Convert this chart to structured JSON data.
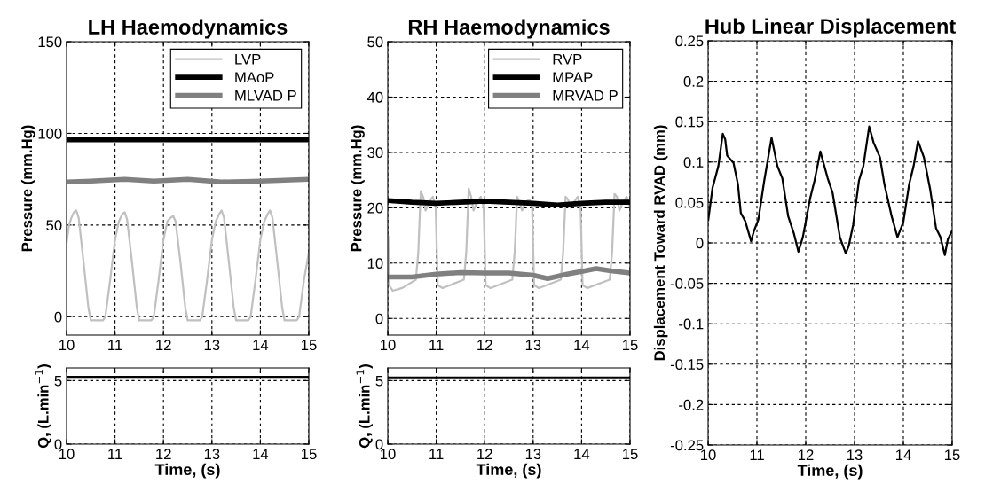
{
  "chart_data": [
    {
      "type": "line",
      "title": "LH Haemodynamics",
      "ylabel": "Pressure (mm.Hg)",
      "xlim": [
        10,
        15
      ],
      "xticks": [
        10,
        11,
        12,
        13,
        14,
        15
      ],
      "ylim": [
        -10,
        150
      ],
      "yticks": [
        0,
        50,
        100,
        150
      ],
      "grid": true,
      "legend": "top right",
      "series": [
        {
          "name": "LVP",
          "color": "#c0c0c0",
          "x": [
            10.0,
            10.05,
            10.1,
            10.15,
            10.2,
            10.25,
            10.35,
            10.45,
            10.5,
            10.75,
            10.8,
            10.9,
            11.0,
            11.08,
            11.15,
            11.2,
            11.25,
            11.35,
            11.45,
            11.5,
            11.75,
            11.8,
            11.9,
            12.0,
            12.08,
            12.15,
            12.2,
            12.25,
            12.35,
            12.45,
            12.5,
            12.75,
            12.8,
            12.9,
            13.0,
            13.08,
            13.15,
            13.2,
            13.25,
            13.35,
            13.45,
            13.5,
            13.75,
            13.8,
            13.9,
            14.0,
            14.08,
            14.15,
            14.2,
            14.25,
            14.35,
            14.45,
            14.5,
            14.75,
            14.8,
            14.9,
            15.0
          ],
          "values": [
            40,
            50,
            54,
            57,
            58,
            54,
            30,
            5,
            -2,
            -2,
            0,
            20,
            42,
            52,
            56,
            57,
            53,
            30,
            5,
            -2,
            -2,
            0,
            20,
            42,
            52,
            54,
            55,
            52,
            30,
            5,
            -2,
            -2,
            0,
            20,
            42,
            52,
            56,
            58,
            54,
            30,
            5,
            -2,
            -2,
            0,
            20,
            42,
            52,
            56,
            58,
            54,
            30,
            5,
            -2,
            -2,
            0,
            20,
            35
          ]
        },
        {
          "name": "MAoP",
          "color": "#000000",
          "x": [
            10,
            15
          ],
          "values": [
            96.5,
            96.5
          ]
        },
        {
          "name": "MLVAD P",
          "color": "#808080",
          "x": [
            10,
            10.5,
            11.2,
            11.8,
            12.5,
            13.2,
            14,
            15
          ],
          "values": [
            73.5,
            74,
            75,
            74,
            75,
            73.5,
            74,
            75
          ]
        }
      ]
    },
    {
      "type": "line",
      "ylabel": "Q, (L.min$^{−1}$)",
      "xlabel": "Time, (s)",
      "xlim": [
        10,
        15
      ],
      "xticks": [
        10,
        11,
        12,
        13,
        14,
        15
      ],
      "ylim": [
        0,
        6
      ],
      "yticks": [
        0,
        5
      ],
      "grid": true,
      "series": [
        {
          "color": "#000000",
          "x": [
            10,
            15
          ],
          "values": [
            5.3,
            5.3
          ]
        }
      ]
    },
    {
      "type": "line",
      "title": "RH Haemodynamics",
      "ylabel": "Pressure (mm.Hg)",
      "xlim": [
        10,
        15
      ],
      "xticks": [
        10,
        11,
        12,
        13,
        14,
        15
      ],
      "ylim": [
        -3,
        50
      ],
      "yticks": [
        0,
        10,
        20,
        30,
        40,
        50
      ],
      "grid": true,
      "legend": "top right",
      "series": [
        {
          "name": "RVP",
          "color": "#c0c0c0",
          "x": [
            10.01,
            10.03,
            10.1,
            10.3,
            10.58,
            10.63,
            10.68,
            10.73,
            10.78,
            10.85,
            10.93,
            10.99,
            11.03,
            11.13,
            11.57,
            11.62,
            11.67,
            11.72,
            11.77,
            11.84,
            11.92,
            11.98,
            12.02,
            12.12,
            12.57,
            12.62,
            12.67,
            12.72,
            12.77,
            12.84,
            12.92,
            12.98,
            13.02,
            13.12,
            13.57,
            13.62,
            13.67,
            13.72,
            13.77,
            13.84,
            13.92,
            13.98,
            14.02,
            14.12,
            14.58,
            14.63,
            14.68,
            14.73,
            14.78,
            14.85,
            14.93,
            15.0
          ],
          "values": [
            15,
            6,
            5,
            5.5,
            7,
            12,
            23,
            22,
            19.5,
            21,
            22,
            20,
            6,
            5.5,
            7,
            12,
            23.5,
            22,
            19.5,
            21,
            22,
            20,
            6,
            5.5,
            7,
            12,
            22,
            21,
            19.5,
            21,
            21.5,
            20,
            6,
            5.5,
            7,
            12,
            22,
            21.5,
            20,
            21,
            22,
            20,
            6,
            5.5,
            7,
            12,
            22.5,
            22,
            19.5,
            21,
            22,
            20
          ]
        },
        {
          "name": "MPAP",
          "color": "#000000",
          "x": [
            10,
            10.5,
            11,
            11.5,
            12,
            12.5,
            13,
            13.5,
            14,
            14.5,
            15
          ],
          "values": [
            21.3,
            21,
            20.8,
            21,
            21.2,
            21,
            20.8,
            20.5,
            20.8,
            21,
            21
          ]
        },
        {
          "name": "MRVAD P",
          "color": "#808080",
          "x": [
            10,
            10.5,
            11,
            11.5,
            12,
            12.5,
            13,
            13.3,
            13.7,
            14,
            14.3,
            14.6,
            15
          ],
          "values": [
            7.5,
            7.5,
            8,
            8.3,
            8.2,
            8.2,
            7.8,
            7.2,
            8,
            8.5,
            9,
            8.6,
            8.2
          ]
        }
      ]
    },
    {
      "type": "line",
      "ylabel": "Q, (L.min$^{−1}$)",
      "xlabel": "Time, (s)",
      "xlim": [
        10,
        15
      ],
      "xticks": [
        10,
        11,
        12,
        13,
        14,
        15
      ],
      "ylim": [
        0,
        6
      ],
      "yticks": [
        0,
        5
      ],
      "grid": true,
      "series": [
        {
          "color": "#000000",
          "x": [
            10,
            15
          ],
          "values": [
            5.25,
            5.25
          ]
        }
      ]
    },
    {
      "type": "line",
      "title": "Hub Linear Displacement",
      "ylabel": "Displacement Toward RVAD (mm)",
      "xlabel": "Time, (s)",
      "xlim": [
        10,
        15
      ],
      "xticks": [
        10,
        11,
        12,
        13,
        14,
        15
      ],
      "ylim": [
        -0.25,
        0.25
      ],
      "yticks": [
        -0.25,
        -0.2,
        -0.15,
        -0.1,
        -0.05,
        0,
        0.05,
        0.1,
        0.15,
        0.2,
        0.25
      ],
      "grid": true,
      "series": [
        {
          "color": "#000000",
          "x": [
            10.0,
            10.09,
            10.21,
            10.3,
            10.35,
            10.39,
            10.52,
            10.61,
            10.67,
            10.76,
            10.88,
            10.94,
            11.03,
            11.15,
            11.3,
            11.42,
            11.52,
            11.64,
            11.76,
            11.85,
            11.94,
            12.09,
            12.18,
            12.3,
            12.45,
            12.55,
            12.7,
            12.82,
            12.88,
            12.97,
            13.09,
            13.18,
            13.3,
            13.39,
            13.52,
            13.61,
            13.76,
            13.88,
            14.0,
            14.12,
            14.21,
            14.3,
            14.42,
            14.55,
            14.67,
            14.76,
            14.85,
            14.91,
            15.0
          ],
          "values": [
            0.027,
            0.068,
            0.095,
            0.135,
            0.128,
            0.108,
            0.099,
            0.073,
            0.037,
            0.027,
            0.002,
            0.015,
            0.029,
            0.077,
            0.13,
            0.095,
            0.08,
            0.033,
            0.011,
            -0.011,
            0.007,
            0.055,
            0.077,
            0.113,
            0.08,
            0.062,
            0.007,
            -0.013,
            -0.004,
            0.022,
            0.077,
            0.095,
            0.144,
            0.124,
            0.106,
            0.073,
            0.033,
            0.007,
            0.026,
            0.073,
            0.095,
            0.126,
            0.106,
            0.066,
            0.018,
            0.007,
            -0.015,
            0.004,
            0.015
          ]
        }
      ]
    }
  ]
}
